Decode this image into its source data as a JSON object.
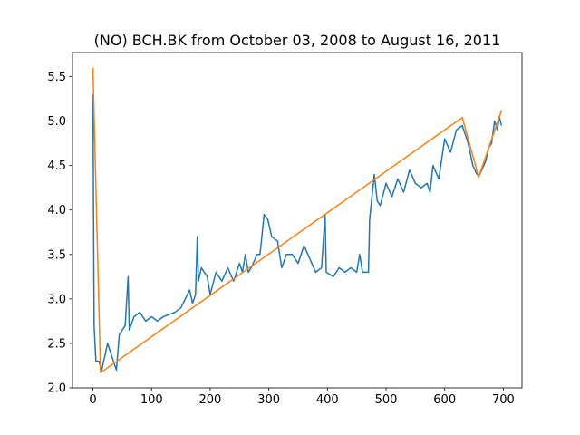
{
  "chart_data": {
    "type": "line",
    "title": "(NO) BCH.BK from October 03, 2008 to August 16, 2011",
    "xlim": [
      -34.85,
      731.85
    ],
    "ylim": [
      2.0,
      5.77
    ],
    "xticks": [
      0,
      100,
      200,
      300,
      400,
      500,
      600,
      700
    ],
    "yticks": [
      {
        "value": 2.0,
        "label": "2.0"
      },
      2.5,
      {
        "value": 3.0,
        "label": "3.0"
      },
      3.5,
      {
        "value": 4.0,
        "label": "4.0"
      },
      4.5,
      {
        "value": 5.0,
        "label": "5.0"
      },
      5.5
    ],
    "series": [
      {
        "color": "#1f77b4",
        "x": [
          0,
          2,
          5,
          10,
          15,
          25,
          35,
          40,
          45,
          55,
          60,
          62,
          70,
          80,
          90,
          100,
          110,
          120,
          140,
          150,
          165,
          170,
          175,
          178,
          180,
          185,
          195,
          200,
          210,
          220,
          230,
          240,
          250,
          255,
          260,
          265,
          270,
          280,
          285,
          292,
          298,
          305,
          315,
          322,
          330,
          340,
          350,
          360,
          370,
          380,
          390,
          396,
          398,
          410,
          420,
          430,
          440,
          450,
          455,
          460,
          470,
          472,
          480,
          485,
          490,
          500,
          510,
          520,
          530,
          540,
          550,
          560,
          570,
          575,
          580,
          590,
          600,
          610,
          620,
          630,
          635,
          640,
          648,
          655,
          660,
          670,
          675,
          680,
          685,
          690,
          693,
          697
        ],
        "values": [
          5.3,
          2.7,
          2.3,
          2.3,
          2.2,
          2.5,
          2.3,
          2.2,
          2.6,
          2.7,
          3.25,
          2.65,
          2.8,
          2.85,
          2.75,
          2.8,
          2.75,
          2.8,
          2.85,
          2.9,
          3.1,
          2.95,
          3.05,
          3.7,
          3.2,
          3.35,
          3.25,
          3.05,
          3.3,
          3.2,
          3.35,
          3.2,
          3.4,
          3.3,
          3.5,
          3.3,
          3.35,
          3.5,
          3.5,
          3.95,
          3.9,
          3.7,
          3.65,
          3.35,
          3.5,
          3.5,
          3.4,
          3.6,
          3.45,
          3.3,
          3.35,
          3.95,
          3.3,
          3.25,
          3.35,
          3.3,
          3.35,
          3.3,
          3.5,
          3.3,
          3.3,
          3.9,
          4.4,
          4.1,
          4.05,
          4.3,
          4.15,
          4.35,
          4.2,
          4.45,
          4.3,
          4.25,
          4.3,
          4.2,
          4.5,
          4.35,
          4.8,
          4.65,
          4.9,
          4.95,
          4.85,
          4.75,
          4.5,
          4.4,
          4.4,
          4.55,
          4.7,
          4.75,
          5.0,
          4.9,
          5.05,
          4.95
        ]
      },
      {
        "color": "#ff7f0e",
        "x": [
          0,
          13,
          630,
          658,
          697
        ],
        "values": [
          5.6,
          2.17,
          5.04,
          4.37,
          5.12
        ]
      }
    ]
  }
}
